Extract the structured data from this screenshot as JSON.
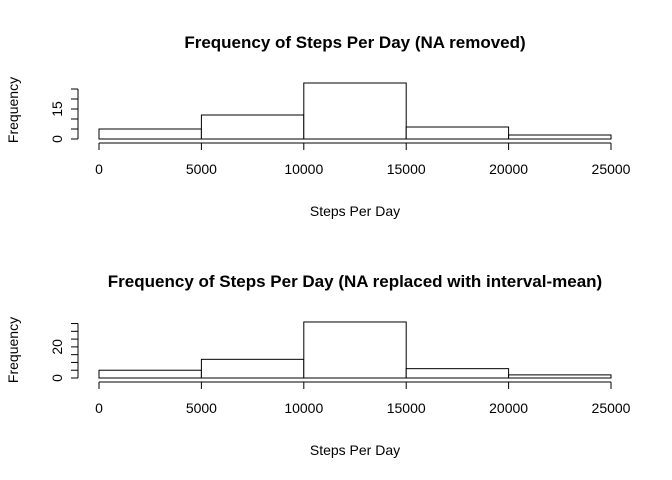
{
  "chart_data": [
    {
      "type": "bar",
      "title": "Frequency of Steps Per Day (NA removed)",
      "xlabel": "Steps Per Day",
      "ylabel": "Frequency",
      "bins": [
        [
          0,
          5000
        ],
        [
          5000,
          10000
        ],
        [
          10000,
          15000
        ],
        [
          15000,
          20000
        ],
        [
          20000,
          25000
        ]
      ],
      "values": [
        5,
        12,
        28,
        6,
        2
      ],
      "xlim": [
        0,
        25000
      ],
      "ylim": [
        0,
        28
      ],
      "x_ticks": [
        0,
        5000,
        10000,
        15000,
        20000,
        25000
      ],
      "x_tick_labels": [
        "0",
        "5000",
        "10000",
        "15000",
        "20000",
        "25000"
      ],
      "y_ticks": [
        0,
        5,
        10,
        15,
        20,
        25
      ],
      "y_tick_labels": [
        "0",
        "15"
      ],
      "y_labeled_ticks": [
        0,
        15
      ],
      "grid": false,
      "legend": "none"
    },
    {
      "type": "bar",
      "title": "Frequency of Steps Per Day (NA replaced with interval-mean)",
      "xlabel": "Steps Per Day",
      "ylabel": "Frequency",
      "bins": [
        [
          0,
          5000
        ],
        [
          5000,
          10000
        ],
        [
          10000,
          15000
        ],
        [
          15000,
          20000
        ],
        [
          20000,
          25000
        ]
      ],
      "values": [
        5,
        12,
        36,
        6,
        2
      ],
      "xlim": [
        0,
        25000
      ],
      "ylim": [
        0,
        36
      ],
      "x_ticks": [
        0,
        5000,
        10000,
        15000,
        20000,
        25000
      ],
      "x_tick_labels": [
        "0",
        "5000",
        "10000",
        "15000",
        "20000",
        "25000"
      ],
      "y_ticks": [
        0,
        5,
        10,
        15,
        20,
        25,
        30,
        35
      ],
      "y_tick_labels": [
        "0",
        "20"
      ],
      "y_labeled_ticks": [
        0,
        20
      ],
      "grid": false,
      "legend": "none"
    }
  ]
}
